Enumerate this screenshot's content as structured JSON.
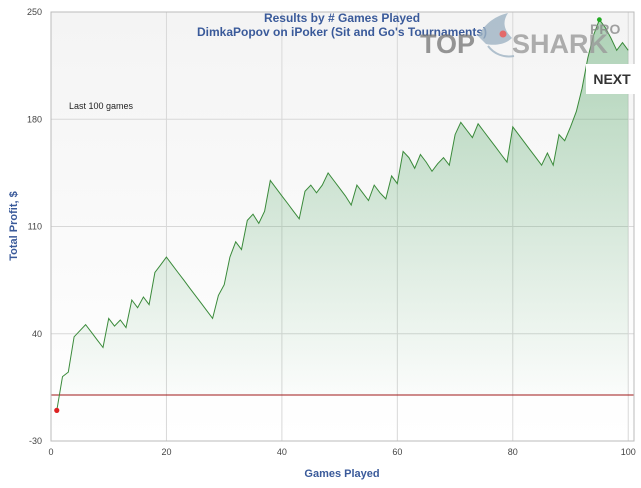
{
  "chart_data": {
    "type": "line",
    "title": "Results by # Games Played",
    "subtitle": "DimkaPopov on iPoker (Sit and Go's Tournaments)",
    "xlabel": "Games Played",
    "ylabel": "Total Profit, $",
    "xlim": [
      0,
      101
    ],
    "ylim": [
      -30,
      250
    ],
    "x_ticks": [
      0,
      20,
      40,
      60,
      80,
      100
    ],
    "y_ticks": [
      -30,
      40,
      110,
      180,
      250
    ],
    "grid": true,
    "annotation": "Last 100 games",
    "line_color": "#3a8a3a",
    "area_color": "#3a9a50",
    "zero_line_color": "#a01818",
    "start_marker_color": "#dd2222",
    "end_marker_color": "#22aa22",
    "series": [
      {
        "x": [
          1,
          2,
          3,
          4,
          5,
          6,
          7,
          8,
          9,
          10,
          11,
          12,
          13,
          14,
          15,
          16,
          17,
          18,
          19,
          20,
          21,
          22,
          23,
          24,
          25,
          26,
          27,
          28,
          29,
          30,
          31,
          32,
          33,
          34,
          35,
          36,
          37,
          38,
          39,
          40,
          41,
          42,
          43,
          44,
          45,
          46,
          47,
          48,
          49,
          50,
          51,
          52,
          53,
          54,
          55,
          56,
          57,
          58,
          59,
          60,
          61,
          62,
          63,
          64,
          65,
          66,
          67,
          68,
          69,
          70,
          71,
          72,
          73,
          74,
          75,
          76,
          77,
          78,
          79,
          80,
          81,
          82,
          83,
          84,
          85,
          86,
          87,
          88,
          89,
          90,
          91,
          92,
          93,
          94,
          95,
          96,
          97,
          98,
          99,
          100
        ],
        "values": [
          -10,
          12,
          15,
          38,
          42,
          46,
          41,
          36,
          31,
          50,
          45,
          49,
          44,
          62,
          57,
          64,
          59,
          80,
          85,
          90,
          85,
          80,
          75,
          70,
          65,
          60,
          55,
          50,
          65,
          72,
          90,
          100,
          95,
          114,
          118,
          112,
          120,
          140,
          135,
          130,
          125,
          120,
          115,
          133,
          137,
          132,
          137,
          145,
          140,
          135,
          130,
          124,
          137,
          132,
          127,
          137,
          132,
          128,
          143,
          138,
          159,
          155,
          148,
          157,
          152,
          146,
          151,
          155,
          150,
          170,
          178,
          173,
          168,
          177,
          172,
          167,
          162,
          157,
          152,
          175,
          170,
          165,
          160,
          155,
          150,
          158,
          150,
          170,
          166,
          175,
          185,
          200,
          220,
          235,
          245,
          240,
          233,
          225,
          230,
          225
        ]
      }
    ]
  },
  "logo": {
    "brand": "TOPSHARK",
    "brand_part1": "TOP",
    "brand_part2": "SHARK",
    "badge": "PRO"
  },
  "nav": {
    "next_label": "NEXT"
  }
}
